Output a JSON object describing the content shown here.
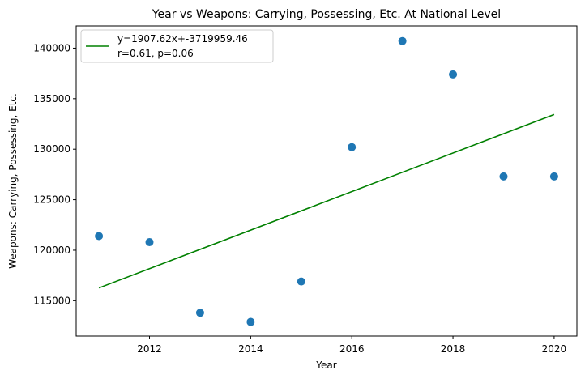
{
  "chart_data": {
    "type": "scatter",
    "title": "Year vs Weapons: Carrying, Possessing, Etc. At National Level",
    "xlabel": "Year",
    "ylabel": "Weapons: Carrying, Possessing, Etc.",
    "xlim": [
      2010.55,
      2020.45
    ],
    "ylim": [
      111500,
      142200
    ],
    "xticks": [
      2012,
      2014,
      2016,
      2018,
      2020
    ],
    "yticks": [
      115000,
      120000,
      125000,
      130000,
      135000,
      140000
    ],
    "points": {
      "x": [
        2011,
        2012,
        2013,
        2014,
        2015,
        2016,
        2017,
        2018,
        2019,
        2020
      ],
      "y": [
        121400,
        120800,
        113800,
        112900,
        116900,
        130200,
        140700,
        137400,
        127300,
        127300
      ]
    },
    "fit_line": {
      "slope": 1907.62,
      "intercept": -3719959.46,
      "x_range": [
        2011,
        2020
      ]
    },
    "legend": {
      "line1": "y=1907.62x+-3719959.46",
      "line2": "r=0.61, p=0.06",
      "location": "upper-left"
    },
    "colors": {
      "points": "#1f77b4",
      "fit_line": "#008000"
    }
  }
}
